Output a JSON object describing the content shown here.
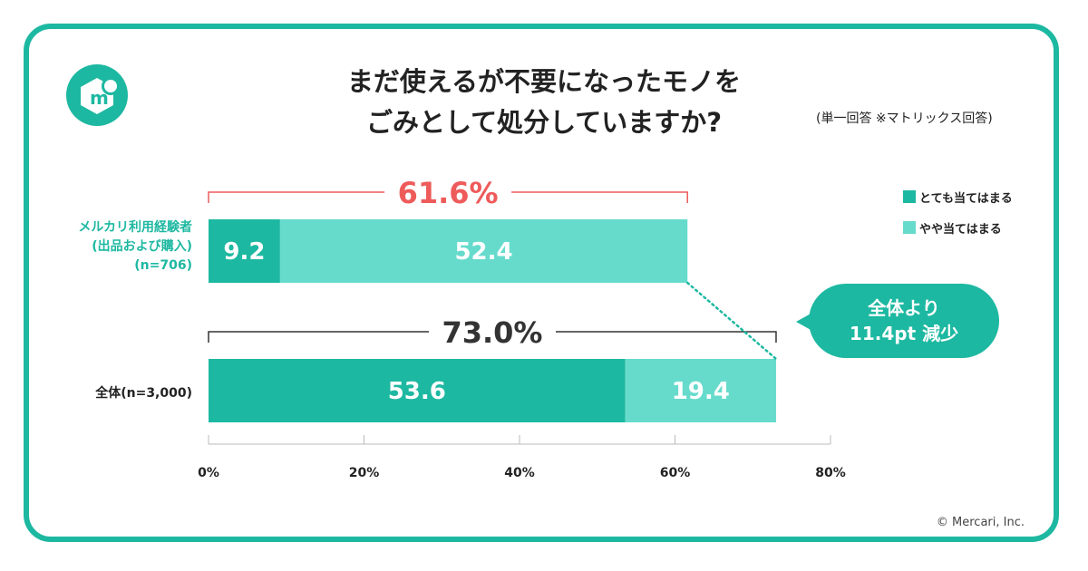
{
  "title_line1": "まだ使えるが不要になったモノを",
  "title_line2": "ごみとして処分していますか?",
  "note": "(単一回答 ※マトリックス回答)",
  "copyright": "© Mercari, Inc.",
  "callout": {
    "line1": "全体より",
    "line2": "11.4pt 減少"
  },
  "colors": {
    "accent": "#1db8a1",
    "strong": "#1db8a1",
    "light": "#66dbcc",
    "highlight": "#ee5b5b",
    "neutral": "#333333"
  },
  "chart_data": {
    "type": "bar",
    "orientation": "horizontal",
    "stacked": true,
    "categories": [
      {
        "label_lines": [
          "メルカリ利用経験者",
          "(出品および購入)",
          "(n=706)"
        ],
        "total_label": "61.6%"
      },
      {
        "label_lines": [
          "全体(n=3,000)"
        ],
        "total_label": "73.0%"
      }
    ],
    "series": [
      {
        "name": "とても当てはまる",
        "values": [
          9.2,
          53.6
        ]
      },
      {
        "name": "やや当てはまる",
        "values": [
          52.4,
          19.4
        ]
      }
    ],
    "xlim": [
      0,
      80
    ],
    "xticks": [
      "0%",
      "20%",
      "40%",
      "60%",
      "80%"
    ],
    "legend_position": "top-right"
  }
}
